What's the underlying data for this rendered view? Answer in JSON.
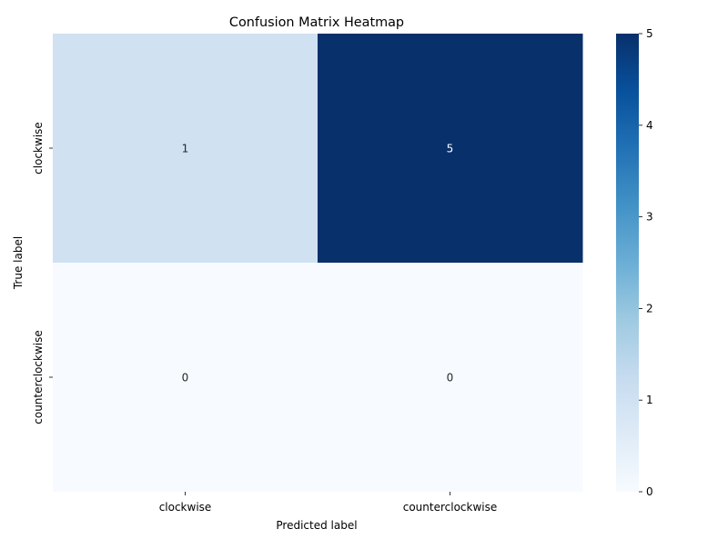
{
  "chart_data": {
    "type": "heatmap",
    "title": "Confusion Matrix Heatmap",
    "xlabel": "Predicted label",
    "ylabel": "True label",
    "x_categories": [
      "clockwise",
      "counterclockwise"
    ],
    "y_categories": [
      "clockwise",
      "counterclockwise"
    ],
    "values": [
      [
        1,
        5
      ],
      [
        0,
        0
      ]
    ],
    "colormap": "Blues",
    "colorbar": {
      "range": [
        0,
        5
      ],
      "ticks": [
        0,
        1,
        2,
        3,
        4,
        5
      ]
    },
    "colors": {
      "low": "#f7fbff",
      "high": "#08306b",
      "text_on_light": "#262626",
      "text_on_dark": "#ffffff"
    },
    "grid": false
  }
}
